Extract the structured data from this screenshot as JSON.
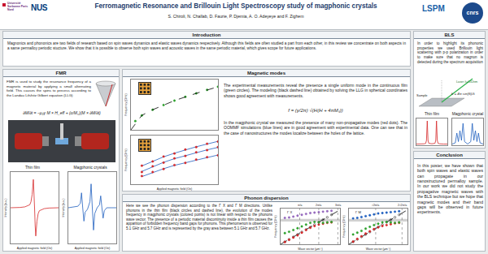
{
  "header": {
    "title": "Ferromagnetic Resonance and Brillouin Light Spectroscopy study of magphonic crystals",
    "authors": "S. Chiroli, N. Challab, D. Faurie, P. Djemia, A. O. Adeyeye and F. Zighem",
    "logos_left": [
      "Université Sorbonne Paris Nord",
      "NUS"
    ],
    "logos_right": [
      "LSPM",
      "cnrs"
    ]
  },
  "sections": {
    "introduction": {
      "heading": "Introduction",
      "text": "Magnonics and phononics are two fields of research based on spin waves dynamics and elastic waves dynamics respectively. Although this fields are often studied a part from each other, in this review we concentrate on both aspects in a same permalloy periodic stucture. We show that it is possible to observe both spin waves and acoustic waves in the same periodic material, which gives scope for future applications."
    },
    "fmr": {
      "heading": "FMR",
      "text": "FMR is used to study the resonance frequency of a magnetic material by applying a small alternating field. This causes the spins to precess according to the Landau Lifshitz Gilbert equation (LLG)",
      "equation": "∂M/∂t = −μ₀γ M × H_eff + (α/Mₛ)(M × ∂M/∂t)"
    },
    "magnetic_modes": {
      "heading": "Magnetic modes",
      "text_1": "The experimental measurements reveal the presence a single uniform mode in the continuous film (green circles). The modeling (black dashed line) obtained by solving the LLG in spherical coordinates shows good agreement with measurements.",
      "equation": "f = (γ/2π) √(H(H + 4πMₛ))",
      "text_2": "In the magphonic crystal we measured the presence of many non-propagative modes (red dots). The OOMMF simulations (blue lines) are in good agreement with experimental data. One can see that in the case of nanostructures the modes localize between the holes of the lattice."
    },
    "phonon_dispersion": {
      "heading": "Phonon dispersion",
      "text": "Here we see the phonon dispersion according to the Γ X and Γ M directions. Unlike phonons in the thin film (black circles and dashed line), the evolution of the modes frequency in magphonic crystals (colored points) is not linear with respect to the phonons wave vector. The presence of a periodic material discontinuity inside a thin film causes the apparition of forbidden frequency band gaps for phonons. This phenomenon is observed for 5.1 GHz and 5.7 GHz and is represented by the gray area between 5.1 GHz and 5.7 GHz."
    },
    "bls": {
      "heading": "BLS",
      "text": "In order to highlight its phononic properties we used Brillouin light scattering with p-p polarization in order to make sure that no magnon is detected during the spectrum acquisition",
      "laser": "Laser λ=532nm",
      "sample": "Sample",
      "equation": "k = 4π sin(θᵢ)/λ"
    },
    "conclusion": {
      "heading": "Conclusion",
      "text": "In this poster, we have shown that both spin waves and elastic waves can propagate in our nanostructured permalloy sample. In our work we did not study the propagative magnetic waves with the BLS technique but we hope that magnetic modes and their band gaps will be observed in future experiments."
    }
  },
  "chart_data": [
    {
      "type": "line",
      "title": "Thin film",
      "x_label": "Applied magnetic field (Oe)",
      "y_label": "Intensity (a.u.)",
      "xlim": [
        0,
        2000
      ],
      "ylim": [
        -1.2,
        1.2
      ],
      "tick_labels": false,
      "grid": false,
      "series": [
        {
          "color": "#d62728",
          "x": [
            0,
            200,
            400,
            600,
            800,
            850,
            900,
            950,
            975,
            1000,
            1025,
            1050,
            1100,
            1150,
            1200,
            1400,
            1600,
            1800,
            2000
          ],
          "values": [
            0,
            0,
            0.01,
            0.03,
            0.1,
            0.2,
            0.45,
            0.95,
            0.6,
            0,
            -0.6,
            -0.95,
            -0.45,
            -0.2,
            -0.1,
            -0.03,
            -0.01,
            0,
            0
          ]
        }
      ]
    },
    {
      "type": "line",
      "title": "Magphonic crystals",
      "x_label": "Applied magnetic field (Oe)",
      "y_label": "Intensity (a.u.)",
      "xlim": [
        0,
        2000
      ],
      "ylim": [
        -1.2,
        1.2
      ],
      "tick_labels": false,
      "grid": false,
      "series": [
        {
          "color": "#1f5fbf",
          "x": [
            0,
            200,
            400,
            500,
            550,
            600,
            650,
            700,
            800,
            900,
            950,
            1000,
            1050,
            1100,
            1200,
            1300,
            1350,
            1400,
            1450,
            1500,
            1600,
            1800,
            2000
          ],
          "values": [
            0,
            0.02,
            0.05,
            0.15,
            0.5,
            0,
            -0.45,
            -0.15,
            -0.05,
            0.2,
            0.8,
            0,
            -0.75,
            -0.2,
            0,
            0.1,
            0.4,
            0,
            -0.35,
            -0.1,
            0,
            0,
            0
          ]
        }
      ]
    },
    {
      "type": "line",
      "y_label": "Frequency (GHz)",
      "xlim": [
        0,
        2000
      ],
      "ylim": [
        0,
        16
      ],
      "tick_labels": false,
      "grid": false,
      "series": [
        {
          "type": "scatter",
          "marker": "circle",
          "color": "#2ca02c",
          "x": [
            100,
            250,
            500,
            750,
            1000,
            1250,
            1500,
            1750,
            2000
          ],
          "values": [
            2.8,
            4.6,
            6.4,
            7.9,
            9.3,
            10.5,
            11.6,
            12.7,
            13.7
          ]
        },
        {
          "type": "line",
          "line_style": "dashed",
          "color": "#000000",
          "x": [
            0,
            250,
            500,
            1000,
            1500,
            2000
          ],
          "values": [
            0,
            4.6,
            6.4,
            9.3,
            11.6,
            13.7
          ]
        }
      ]
    },
    {
      "type": "line",
      "x_label": "Applied magnetic field (Oe)",
      "y_label": "Frequency (GHz)",
      "xlim": [
        0,
        2000
      ],
      "ylim": [
        0,
        16
      ],
      "tick_labels": false,
      "grid": false,
      "series": [
        {
          "type": "line",
          "color": "#1f5fbf",
          "x": [
            250,
            500,
            750,
            1000,
            1250,
            1500,
            1750,
            2000
          ],
          "values": [
            2.5,
            3.9,
            5.1,
            6.2,
            7.1,
            8.0,
            8.8,
            9.6
          ]
        },
        {
          "type": "line",
          "color": "#1f5fbf",
          "x": [
            250,
            500,
            750,
            1000,
            1250,
            1500,
            1750,
            2000
          ],
          "values": [
            4.2,
            5.8,
            7.2,
            8.4,
            9.4,
            10.4,
            11.3,
            12.1
          ]
        },
        {
          "type": "line",
          "color": "#1f5fbf",
          "x": [
            250,
            500,
            750,
            1000,
            1250,
            1500,
            1750,
            2000
          ],
          "values": [
            6.0,
            7.6,
            9.0,
            10.2,
            11.3,
            12.3,
            13.2,
            14.1
          ]
        },
        {
          "type": "scatter",
          "marker": "circle",
          "color": "#d62728",
          "x": [
            250,
            500,
            750,
            1000,
            1250,
            1500,
            1750,
            2000
          ],
          "values": [
            2.7,
            4.0,
            5.0,
            6.3,
            7.0,
            8.1,
            8.9,
            9.5
          ]
        },
        {
          "type": "scatter",
          "marker": "circle",
          "color": "#d62728",
          "x": [
            250,
            500,
            750,
            1000,
            1250,
            1500,
            1750,
            2000
          ],
          "values": [
            4.0,
            5.9,
            7.1,
            8.5,
            9.3,
            10.5,
            11.2,
            12.2
          ]
        },
        {
          "type": "scatter",
          "marker": "circle",
          "color": "#d62728",
          "x": [
            250,
            500,
            750,
            1000,
            1250,
            1500,
            1750,
            2000
          ],
          "values": [
            6.1,
            7.5,
            9.1,
            10.1,
            11.4,
            12.2,
            13.3,
            14.0
          ]
        }
      ]
    },
    {
      "type": "scatter",
      "x_label": "Wave vector (μm⁻¹)",
      "y_label": "Frequency (GHz)",
      "xlim": [
        0,
        14
      ],
      "ylim": [
        0,
        8
      ],
      "tick_labels": false,
      "grid": false,
      "bands": [
        {
          "y0": 5.1,
          "y1": 5.7
        }
      ],
      "annotations": [
        {
          "text": "Γ X",
          "x": 1.2,
          "y": 7.2
        },
        {
          "text": "π/a",
          "x": 4.5
        },
        {
          "text": "2π/a",
          "x": 9
        },
        {
          "text": "3π/a",
          "x": 13.5
        }
      ],
      "series": [
        {
          "type": "scatter",
          "marker": "circle-open",
          "color": "#000000",
          "x": [
            1,
            2,
            3,
            4,
            5,
            6,
            7,
            8,
            9,
            10,
            11,
            12
          ],
          "values": [
            0.55,
            1.1,
            1.65,
            2.2,
            2.75,
            3.3,
            3.85,
            4.4,
            4.95,
            5.5,
            6.05,
            6.6
          ]
        },
        {
          "type": "line",
          "line_style": "dashed",
          "color": "#000000",
          "x": [
            0,
            14
          ],
          "values": [
            0,
            7.7
          ]
        },
        {
          "type": "scatter",
          "marker": "circle",
          "color": "#d62728",
          "x": [
            1,
            2,
            3,
            4,
            5,
            6,
            7,
            8,
            9,
            10,
            11,
            12
          ],
          "values": [
            0.5,
            1.0,
            1.5,
            2.0,
            2.6,
            3.2,
            3.7,
            4.1,
            4.4,
            4.6,
            4.8,
            4.9
          ]
        },
        {
          "type": "scatter",
          "marker": "circle",
          "color": "#2ca02c",
          "x": [
            1,
            2,
            3,
            4,
            5,
            6,
            7,
            8,
            9,
            10,
            11,
            12
          ],
          "values": [
            2.5,
            2.8,
            3.2,
            3.6,
            4.0,
            4.4,
            4.8,
            5.0,
            4.9,
            4.8,
            4.9,
            5.0
          ]
        },
        {
          "type": "scatter",
          "marker": "circle",
          "color": "#9467bd",
          "x": [
            1,
            2,
            3,
            4,
            5,
            6,
            7,
            8,
            9,
            10,
            11,
            12
          ],
          "values": [
            5.9,
            6.0,
            6.2,
            6.4,
            6.6,
            6.8,
            7.0,
            7.1,
            7.2,
            7.3,
            7.4,
            7.5
          ]
        }
      ]
    },
    {
      "type": "scatter",
      "x_label": "Wave vector (μm⁻¹)",
      "y_label": "Frequency (GHz)",
      "xlim": [
        0,
        14
      ],
      "ylim": [
        0,
        8
      ],
      "tick_labels": false,
      "grid": false,
      "bands": [
        {
          "y0": 5.1,
          "y1": 5.7
        }
      ],
      "annotations": [
        {
          "text": "Γ M",
          "x": 1.2,
          "y": 7.2
        },
        {
          "text": "√2π/a",
          "x": 6.4
        },
        {
          "text": "2√2π/a",
          "x": 12.7
        }
      ],
      "series": [
        {
          "type": "scatter",
          "marker": "circle-open",
          "color": "#000000",
          "x": [
            1,
            2,
            3,
            4,
            5,
            6,
            7,
            8,
            9,
            10,
            11,
            12
          ],
          "values": [
            0.55,
            1.1,
            1.65,
            2.2,
            2.75,
            3.3,
            3.85,
            4.4,
            4.95,
            5.5,
            6.05,
            6.6
          ]
        },
        {
          "type": "line",
          "line_style": "dashed",
          "color": "#000000",
          "x": [
            0,
            14
          ],
          "values": [
            0,
            7.7
          ]
        },
        {
          "type": "scatter",
          "marker": "circle",
          "color": "#d62728",
          "x": [
            1,
            2,
            3,
            4,
            5,
            6,
            7,
            8,
            9,
            10,
            11,
            12
          ],
          "values": [
            0.6,
            1.2,
            1.8,
            2.4,
            2.9,
            3.4,
            3.8,
            4.1,
            4.3,
            4.5,
            4.7,
            4.8
          ]
        },
        {
          "type": "scatter",
          "marker": "circle",
          "color": "#2ca02c",
          "x": [
            1,
            2,
            3,
            4,
            5,
            6,
            7,
            8,
            9,
            10,
            11,
            12
          ],
          "values": [
            2.2,
            2.6,
            3.0,
            3.5,
            3.9,
            4.3,
            4.6,
            4.9,
            5.0,
            4.9,
            4.8,
            4.9
          ]
        },
        {
          "type": "scatter",
          "marker": "circle",
          "color": "#1f5fbf",
          "x": [
            1,
            2,
            3,
            4,
            5,
            6,
            7,
            8,
            9,
            10,
            11,
            12
          ],
          "values": [
            5.8,
            5.9,
            6.1,
            6.3,
            6.5,
            6.7,
            6.9,
            7.0,
            7.1,
            7.2,
            7.3,
            7.4
          ]
        }
      ]
    },
    {
      "type": "line",
      "title": "Thin film",
      "xlim": [
        -20,
        20
      ],
      "ylim": [
        0,
        1.1
      ],
      "tick_labels": false,
      "grid": false,
      "series": [
        {
          "color": "#d62728",
          "x": [
            -20,
            -15,
            -10,
            -8,
            -7,
            -6.5,
            -6,
            -5.5,
            -5,
            -4,
            0,
            4,
            5,
            5.5,
            6,
            6.5,
            7,
            8,
            10,
            15,
            20
          ],
          "values": [
            0.05,
            0.05,
            0.06,
            0.08,
            0.2,
            0.6,
            1.0,
            0.6,
            0.2,
            0.08,
            0.06,
            0.08,
            0.2,
            0.6,
            1.0,
            0.6,
            0.2,
            0.08,
            0.06,
            0.05,
            0.05
          ]
        }
      ]
    },
    {
      "type": "line",
      "title": "Magphonic crystal",
      "xlim": [
        -20,
        20
      ],
      "ylim": [
        0,
        1.1
      ],
      "tick_labels": false,
      "grid": false,
      "series": [
        {
          "color": "#1f5fbf",
          "x": [
            -20,
            -16,
            -14,
            -12,
            -10,
            -8,
            -6,
            -4,
            -2,
            0,
            2,
            4,
            6,
            8,
            10,
            12,
            14,
            16,
            20
          ],
          "values": [
            0.05,
            0.1,
            0.5,
            0.15,
            0.6,
            0.2,
            0.9,
            0.15,
            0.1,
            0.05,
            0.1,
            0.15,
            0.9,
            0.2,
            0.6,
            0.15,
            0.5,
            0.1,
            0.05
          ]
        }
      ]
    }
  ]
}
